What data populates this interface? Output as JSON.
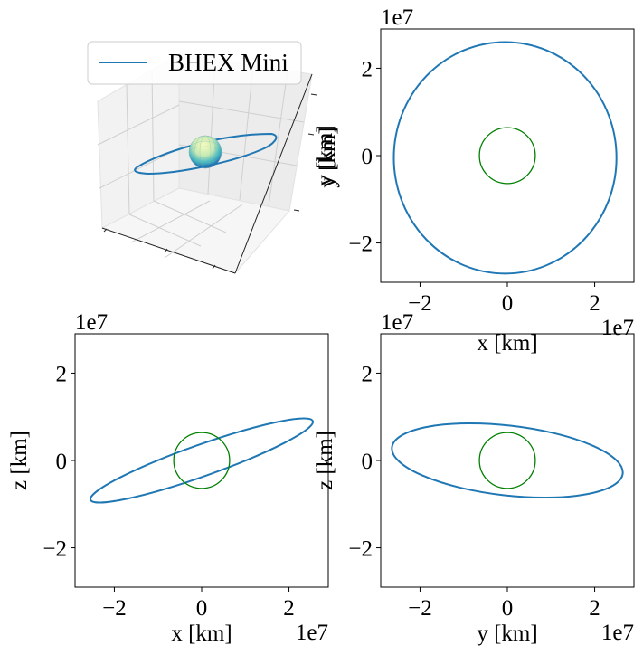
{
  "colors": {
    "orbit": "#1f77b4",
    "earth": "#008000",
    "frame": "#000000",
    "pane": "#f2f2f2",
    "grid": "#cccccc",
    "legend_border": "#cccccc"
  },
  "chart_data": [
    {
      "type": "line3d",
      "title": "",
      "legend": {
        "entries": [
          "BHEX Mini"
        ],
        "placement": "top"
      },
      "series": [
        {
          "name": "BHEX Mini",
          "shape": "inclined elliptical orbit",
          "semi_axis_x_km": 26000000,
          "semi_axis_y_km": 26000000,
          "inclination_deg": 19
        }
      ],
      "sphere": {
        "name": "Earth",
        "colormap": "YlGnBu"
      },
      "xlabel": "",
      "ylabel": "y [km]",
      "zlabel": ""
    },
    {
      "type": "line",
      "title": "",
      "xlabel": "x [km]",
      "ylabel": "y [km]",
      "x_exponent": "1e7",
      "y_exponent": "1e7",
      "xlim": [
        -2.9,
        2.9
      ],
      "ylim": [
        -2.9,
        2.9
      ],
      "xticks": [
        -2,
        0,
        2
      ],
      "yticks": [
        -2,
        0,
        2
      ],
      "xtick_labels": [
        "−2",
        "0",
        "2"
      ],
      "ytick_labels": [
        "−2",
        "0",
        "2"
      ],
      "series": [
        {
          "name": "BHEX Mini",
          "kind": "ellipse",
          "center": [
            -0.05,
            -0.05
          ],
          "semi_a": 2.55,
          "semi_b": 2.65,
          "tilt_deg": 0
        },
        {
          "name": "Earth",
          "kind": "circle",
          "center": [
            0,
            0
          ],
          "radius": 0.64
        }
      ]
    },
    {
      "type": "line",
      "title": "",
      "xlabel": "x [km]",
      "ylabel": "z [km]",
      "x_exponent": "1e7",
      "y_exponent": "1e7",
      "xlim": [
        -2.9,
        2.9
      ],
      "ylim": [
        -2.9,
        2.9
      ],
      "xticks": [
        -2,
        0,
        2
      ],
      "yticks": [
        -2,
        0,
        2
      ],
      "xtick_labels": [
        "−2",
        "0",
        "2"
      ],
      "ytick_labels": [
        "−2",
        "0",
        "2"
      ],
      "series": [
        {
          "name": "BHEX Mini",
          "kind": "ellipse",
          "center": [
            0,
            0
          ],
          "semi_a": 2.7,
          "semi_b": 0.36,
          "tilt_deg": 19.5
        },
        {
          "name": "Earth",
          "kind": "circle",
          "center": [
            0,
            0
          ],
          "radius": 0.64
        }
      ]
    },
    {
      "type": "line",
      "title": "",
      "xlabel": "y [km]",
      "ylabel": "z [km]",
      "x_exponent": "1e7",
      "y_exponent": "1e7",
      "xlim": [
        -2.9,
        2.9
      ],
      "ylim": [
        -2.9,
        2.9
      ],
      "xticks": [
        -2,
        0,
        2
      ],
      "yticks": [
        -2,
        0,
        2
      ],
      "xtick_labels": [
        "−2",
        "0",
        "2"
      ],
      "ytick_labels": [
        "−2",
        "0",
        "2"
      ],
      "series": [
        {
          "name": "BHEX Mini",
          "kind": "ellipse",
          "center": [
            0,
            0
          ],
          "semi_a": 2.66,
          "semi_b": 0.8,
          "tilt_deg": -6.5
        },
        {
          "name": "Earth",
          "kind": "circle",
          "center": [
            0,
            0
          ],
          "radius": 0.64
        }
      ]
    }
  ]
}
